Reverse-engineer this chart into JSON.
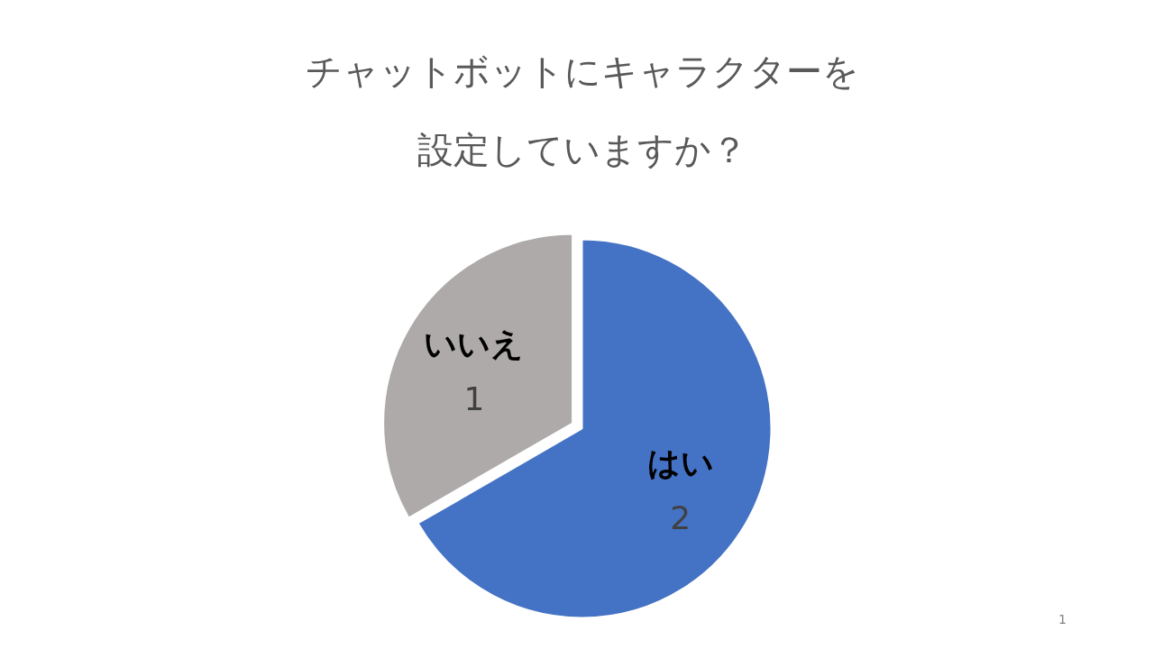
{
  "chart_data": {
    "type": "pie",
    "title": "チャットボットにキャラクターを設定していますか？",
    "categories": [
      "はい",
      "いいえ"
    ],
    "values": [
      2,
      1
    ],
    "colors": [
      "#4472c4",
      "#aeaaaa"
    ],
    "data_labels": true,
    "annotations": [
      "1"
    ]
  }
}
